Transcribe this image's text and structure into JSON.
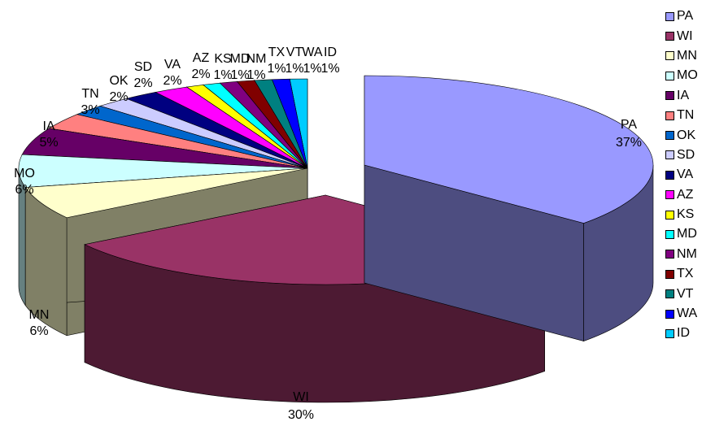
{
  "chart_data": {
    "type": "pie",
    "style": "3d-exploded",
    "labels": [
      "PA",
      "WI",
      "MN",
      "MO",
      "IA",
      "TN",
      "OK",
      "SD",
      "VA",
      "AZ",
      "KS",
      "MD",
      "NM",
      "TX",
      "VT",
      "WA",
      "ID"
    ],
    "values": [
      37,
      30,
      6,
      6,
      5,
      3,
      2,
      2,
      2,
      2,
      1,
      1,
      1,
      1,
      1,
      1,
      1
    ],
    "data_labels": [
      "37%",
      "30%",
      "6%",
      "6%",
      "5%",
      "3%",
      "2%",
      "2%",
      "2%",
      "2%",
      "1%",
      "1%",
      "1%",
      "1%",
      "1%",
      "1%",
      "1%"
    ],
    "colors": [
      "#9999FF",
      "#993366",
      "#FFFFCC",
      "#CCFFFF",
      "#660066",
      "#FF8080",
      "#0066CC",
      "#CCCCFF",
      "#000080",
      "#FF00FF",
      "#FFFF00",
      "#00FFFF",
      "#800080",
      "#800000",
      "#008080",
      "#0000FF",
      "#00CCFF"
    ],
    "legend_position": "right",
    "title": ""
  }
}
